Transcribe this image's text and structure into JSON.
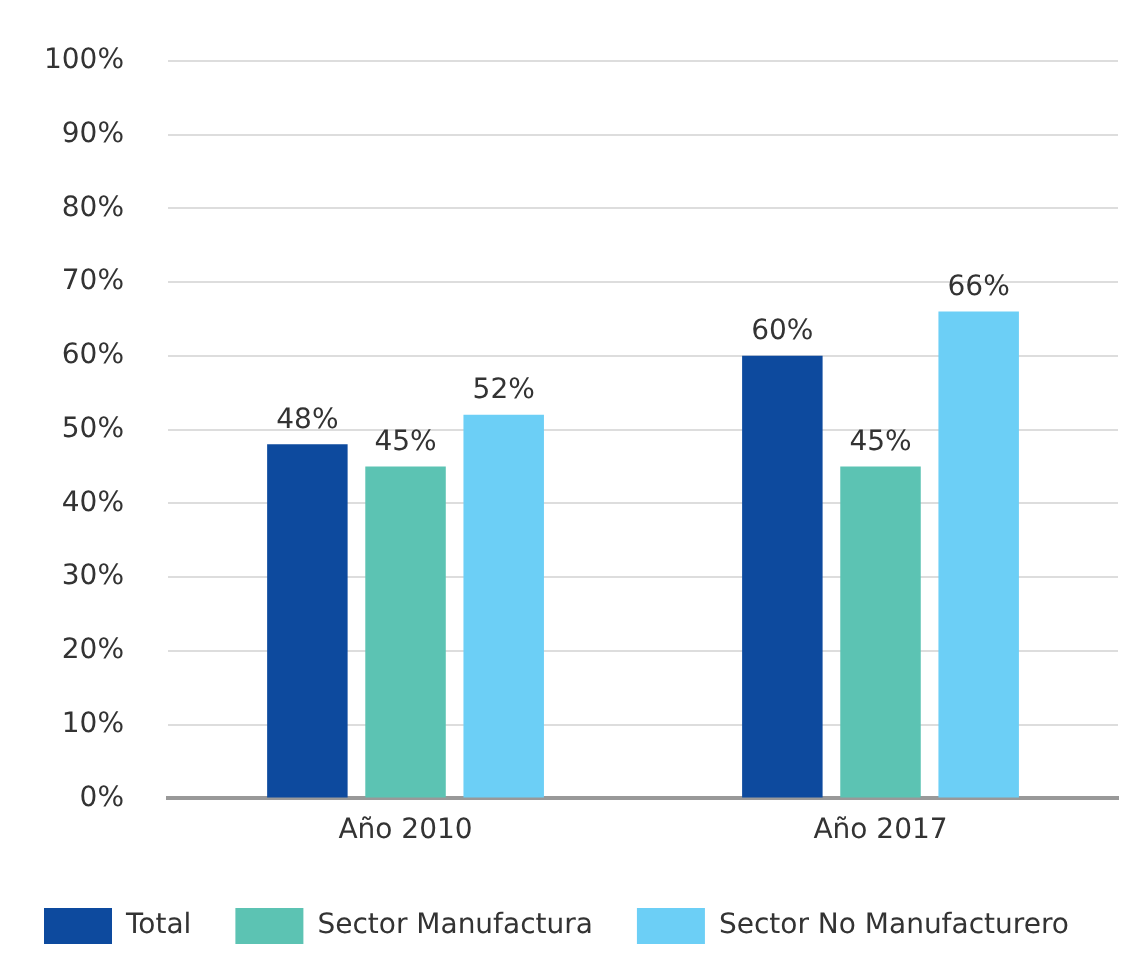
{
  "chart_data": {
    "type": "bar",
    "categories": [
      "Año 2010",
      "Año 2017"
    ],
    "series": [
      {
        "name": "Total",
        "color": "#0d4a9e",
        "values": [
          48,
          60
        ],
        "value_labels": [
          "48%",
          "60%"
        ]
      },
      {
        "name": "Sector Manufactura",
        "color": "#5cc3b3",
        "values": [
          45,
          45
        ],
        "value_labels": [
          "45%",
          "45%"
        ]
      },
      {
        "name": "Sector No Manufacturero",
        "color": "#6ccff6",
        "values": [
          52,
          66
        ],
        "value_labels": [
          "52%",
          "66%"
        ]
      }
    ],
    "ylim": [
      0,
      100
    ],
    "yticks": [
      {
        "value": 0,
        "label": "0%"
      },
      {
        "value": 10,
        "label": "10%"
      },
      {
        "value": 20,
        "label": "20%"
      },
      {
        "value": 30,
        "label": "30%"
      },
      {
        "value": 40,
        "label": "40%"
      },
      {
        "value": 50,
        "label": "50%"
      },
      {
        "value": 60,
        "label": "60%"
      },
      {
        "value": 70,
        "label": "70%"
      },
      {
        "value": 80,
        "label": "80%"
      },
      {
        "value": 90,
        "label": "90%"
      },
      {
        "value": 100,
        "label": "100%"
      }
    ],
    "grid": "y",
    "legend": "bottom left"
  }
}
